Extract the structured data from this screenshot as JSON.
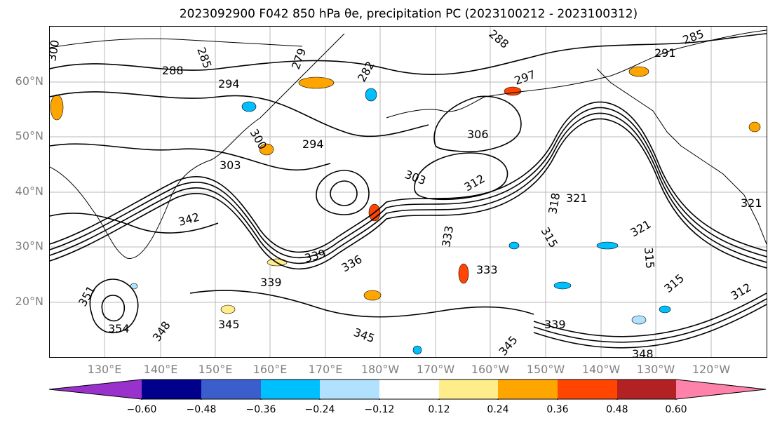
{
  "title": "2023092900 F042 850 hPa θe, precipitation PC (2023100212 - 2023100312)",
  "lat_labels": [
    "60°N",
    "50°N",
    "40°N",
    "30°N",
    "20°N"
  ],
  "lon_labels": [
    "130°E",
    "140°E",
    "150°E",
    "160°E",
    "170°E",
    "180°W",
    "170°W",
    "160°W",
    "150°W",
    "140°W",
    "130°W",
    "120°W"
  ],
  "contour_labels": [
    "300",
    "285",
    "288",
    "279",
    "294",
    "288",
    "285",
    "291",
    "282",
    "297",
    "306",
    "300",
    "294",
    "303",
    "303",
    "312",
    "321",
    "318",
    "342",
    "339",
    "336",
    "333",
    "333",
    "315",
    "321",
    "315",
    "315",
    "339",
    "351",
    "354",
    "348",
    "345",
    "345",
    "339",
    "345",
    "348",
    "321",
    "312"
  ],
  "colorbar": {
    "ticks": [
      "−0.60",
      "−0.48",
      "−0.36",
      "−0.24",
      "−0.12",
      "0.12",
      "0.24",
      "0.36",
      "0.48",
      "0.60"
    ],
    "colors": [
      "#9932cc",
      "#00008b",
      "#3a5fcd",
      "#00bfff",
      "#b0e2ff",
      "#ffffff",
      "#ffec8b",
      "#ffa500",
      "#ff4500",
      "#b22222",
      "#ff82ab"
    ]
  },
  "colors": {
    "contour": "#000000",
    "coastline": "#000000",
    "gridline": "#a9a9a9",
    "tick_label": "#808080"
  }
}
